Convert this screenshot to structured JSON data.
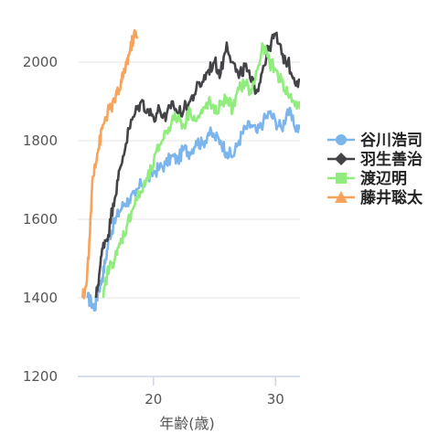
{
  "chart_data": {
    "type": "line",
    "title": "",
    "xlabel": "年齢(歳)",
    "ylabel": "",
    "xlim": [
      13.8,
      32
    ],
    "ylim": [
      1200,
      2100
    ],
    "xticks": [
      20,
      30
    ],
    "yticks": [
      1200,
      1400,
      1600,
      1800,
      2000
    ],
    "grid": "horizontal",
    "legend_position": "right",
    "series": [
      {
        "name": "谷川浩司",
        "color": "#7cb5ec",
        "marker": "circle",
        "points": [
          [
            14.6,
            1400
          ],
          [
            14.9,
            1390
          ],
          [
            15.2,
            1375
          ],
          [
            15.5,
            1420
          ],
          [
            15.8,
            1450
          ],
          [
            16.1,
            1500
          ],
          [
            16.4,
            1560
          ],
          [
            16.8,
            1590
          ],
          [
            17.2,
            1620
          ],
          [
            17.6,
            1640
          ],
          [
            18.0,
            1650
          ],
          [
            18.5,
            1660
          ],
          [
            19.0,
            1690
          ],
          [
            19.5,
            1700
          ],
          [
            20.0,
            1720
          ],
          [
            20.5,
            1730
          ],
          [
            21.0,
            1740
          ],
          [
            21.5,
            1760
          ],
          [
            22.0,
            1750
          ],
          [
            22.5,
            1780
          ],
          [
            23.0,
            1770
          ],
          [
            23.5,
            1800
          ],
          [
            24.0,
            1790
          ],
          [
            24.5,
            1820
          ],
          [
            25.0,
            1810
          ],
          [
            25.5,
            1800
          ],
          [
            26.0,
            1770
          ],
          [
            26.5,
            1760
          ],
          [
            27.0,
            1800
          ],
          [
            27.5,
            1830
          ],
          [
            28.0,
            1840
          ],
          [
            28.5,
            1820
          ],
          [
            29.0,
            1850
          ],
          [
            29.5,
            1870
          ],
          [
            30.0,
            1850
          ],
          [
            30.5,
            1830
          ],
          [
            31.0,
            1880
          ],
          [
            31.5,
            1840
          ],
          [
            32.0,
            1830
          ]
        ]
      },
      {
        "name": "羽生善治",
        "color": "#434348",
        "marker": "diamond",
        "points": [
          [
            15.3,
            1400
          ],
          [
            15.6,
            1470
          ],
          [
            15.9,
            1540
          ],
          [
            16.3,
            1560
          ],
          [
            16.7,
            1640
          ],
          [
            17.1,
            1700
          ],
          [
            17.5,
            1760
          ],
          [
            18.0,
            1830
          ],
          [
            18.5,
            1870
          ],
          [
            19.0,
            1900
          ],
          [
            19.5,
            1880
          ],
          [
            20.0,
            1860
          ],
          [
            20.5,
            1880
          ],
          [
            21.0,
            1850
          ],
          [
            21.5,
            1900
          ],
          [
            22.0,
            1870
          ],
          [
            22.5,
            1880
          ],
          [
            23.0,
            1900
          ],
          [
            23.5,
            1930
          ],
          [
            24.0,
            1950
          ],
          [
            24.5,
            1980
          ],
          [
            25.0,
            2000
          ],
          [
            25.5,
            1970
          ],
          [
            26.0,
            2050
          ],
          [
            26.5,
            2000
          ],
          [
            27.0,
            1960
          ],
          [
            27.5,
            1990
          ],
          [
            28.0,
            1950
          ],
          [
            28.5,
            1930
          ],
          [
            29.0,
            1990
          ],
          [
            29.5,
            2040
          ],
          [
            30.0,
            2070
          ],
          [
            30.5,
            2020
          ],
          [
            31.0,
            2000
          ],
          [
            31.5,
            1960
          ],
          [
            32.0,
            1950
          ]
        ]
      },
      {
        "name": "渡辺明",
        "color": "#90ed7d",
        "marker": "square",
        "points": [
          [
            15.9,
            1400
          ],
          [
            16.2,
            1460
          ],
          [
            16.6,
            1490
          ],
          [
            17.0,
            1510
          ],
          [
            17.4,
            1550
          ],
          [
            17.8,
            1580
          ],
          [
            18.2,
            1620
          ],
          [
            18.6,
            1650
          ],
          [
            19.0,
            1670
          ],
          [
            19.5,
            1700
          ],
          [
            20.0,
            1740
          ],
          [
            20.5,
            1790
          ],
          [
            21.0,
            1820
          ],
          [
            21.5,
            1850
          ],
          [
            22.0,
            1860
          ],
          [
            22.5,
            1840
          ],
          [
            23.0,
            1880
          ],
          [
            23.5,
            1850
          ],
          [
            24.0,
            1870
          ],
          [
            24.5,
            1900
          ],
          [
            25.0,
            1870
          ],
          [
            25.5,
            1890
          ],
          [
            26.0,
            1910
          ],
          [
            26.5,
            1880
          ],
          [
            27.0,
            1930
          ],
          [
            27.5,
            1950
          ],
          [
            28.0,
            1920
          ],
          [
            28.5,
            1980
          ],
          [
            29.0,
            2040
          ],
          [
            29.5,
            2000
          ],
          [
            30.0,
            1980
          ],
          [
            30.5,
            1950
          ],
          [
            31.0,
            1920
          ],
          [
            31.5,
            1900
          ],
          [
            32.0,
            1880
          ]
        ]
      },
      {
        "name": "藤井聡太",
        "color": "#f7a35c",
        "marker": "triangle",
        "points": [
          [
            14.2,
            1400
          ],
          [
            14.5,
            1430
          ],
          [
            14.8,
            1560
          ],
          [
            15.0,
            1700
          ],
          [
            15.2,
            1740
          ],
          [
            15.5,
            1780
          ],
          [
            15.8,
            1830
          ],
          [
            16.1,
            1860
          ],
          [
            16.4,
            1880
          ],
          [
            16.8,
            1900
          ],
          [
            17.2,
            1930
          ],
          [
            17.5,
            1960
          ],
          [
            17.8,
            2000
          ],
          [
            18.1,
            2030
          ],
          [
            18.4,
            2070
          ],
          [
            18.7,
            2060
          ]
        ]
      }
    ]
  }
}
